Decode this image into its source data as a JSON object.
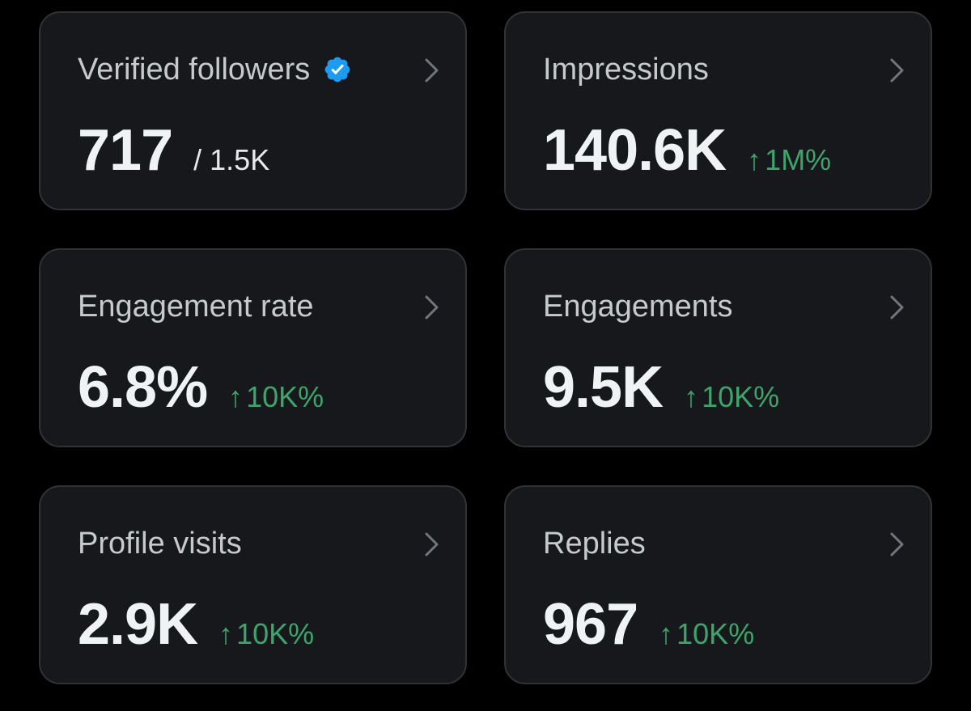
{
  "colors": {
    "background": "#000000",
    "card_background": "#16181c",
    "card_border": "#2f3336",
    "title_text": "#c7cacd",
    "value_text": "#eff3f4",
    "positive_change": "#3fa46b",
    "verified_badge": "#1d9bf0"
  },
  "cards": [
    {
      "title": "Verified followers",
      "icon": "verified-badge-icon",
      "value": "717",
      "sub": "/ 1.5K"
    },
    {
      "title": "Impressions",
      "value": "140.6K",
      "change": {
        "arrow": "↑",
        "text": "1M%"
      }
    },
    {
      "title": "Engagement rate",
      "value": "6.8%",
      "change": {
        "arrow": "↑",
        "text": "10K%"
      }
    },
    {
      "title": "Engagements",
      "value": "9.5K",
      "change": {
        "arrow": "↑",
        "text": "10K%"
      }
    },
    {
      "title": "Profile visits",
      "value": "2.9K",
      "change": {
        "arrow": "↑",
        "text": "10K%"
      }
    },
    {
      "title": "Replies",
      "value": "967",
      "change": {
        "arrow": "↑",
        "text": "10K%"
      }
    }
  ]
}
